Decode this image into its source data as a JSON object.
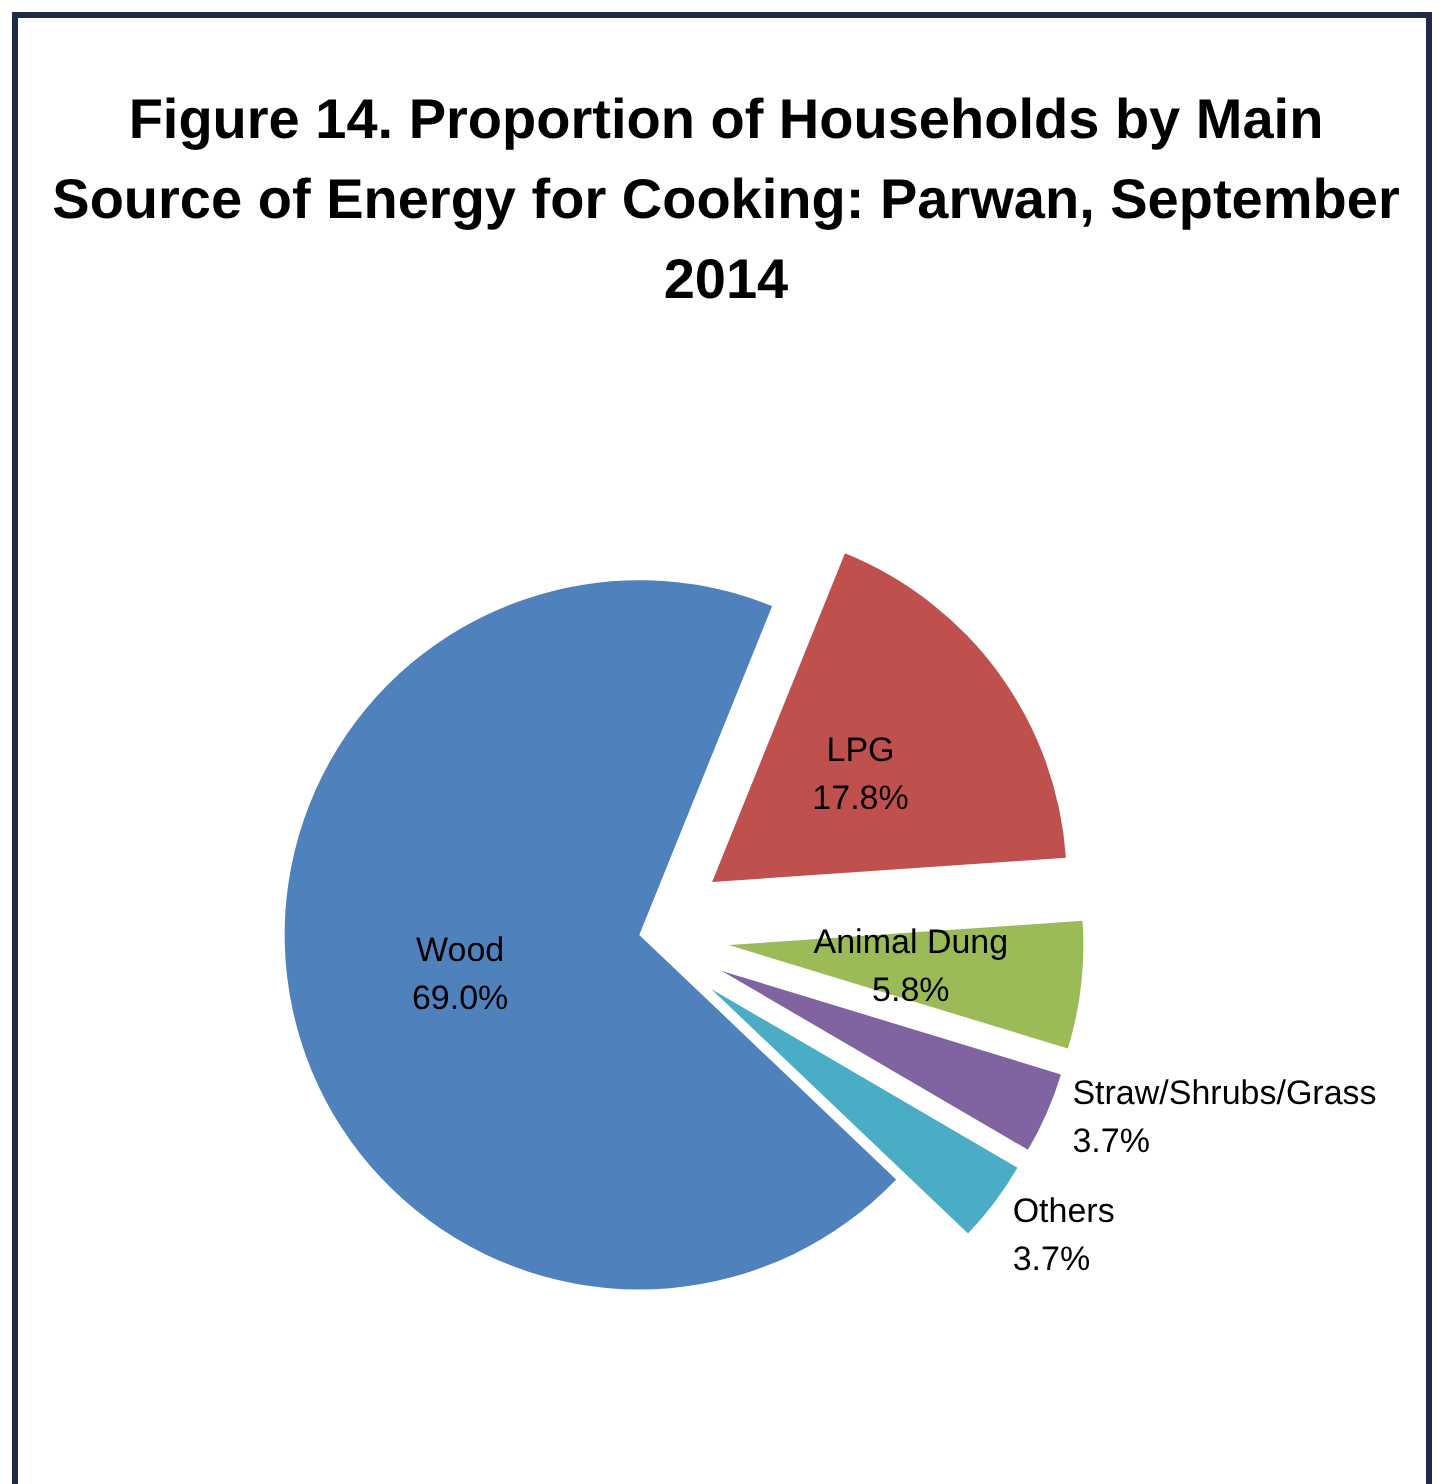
{
  "chart_data": {
    "type": "pie",
    "title": "Figure 14. Proportion of Households by Main Source of Energy for Cooking: Parwan, September 2014",
    "categories": [
      "LPG",
      "Animal Dung",
      "Straw/Shrubs/Grass",
      "Others",
      "Wood"
    ],
    "values": [
      17.8,
      5.8,
      3.7,
      3.7,
      69.0
    ],
    "value_labels": [
      "17.8%",
      "5.8%",
      "3.7%",
      "3.7%",
      "69.0%"
    ],
    "colors": [
      "#c0504d",
      "#9bbb59",
      "#8064a2",
      "#4bacc6",
      "#4f81bd"
    ],
    "legend": false
  }
}
